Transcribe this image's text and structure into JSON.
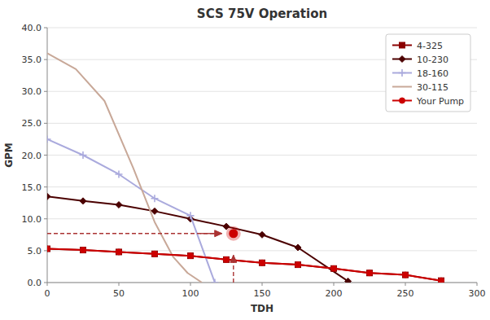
{
  "chart_data": {
    "type": "line",
    "title": "SCS 75V Operation",
    "x_label": "TDH",
    "y_label": "GPM",
    "xlim": [
      0,
      300
    ],
    "ylim": [
      0,
      40
    ],
    "xticks": [
      0,
      50,
      100,
      150,
      200,
      250,
      300
    ],
    "yticks": [
      {
        "value": 0.0,
        "label": "0.0"
      },
      {
        "value": 5.0,
        "label": "5.0"
      },
      {
        "value": 10.0,
        "label": "10.0"
      },
      {
        "value": 15.0,
        "label": "15.0"
      },
      {
        "value": 20.0,
        "label": "20.0"
      },
      {
        "value": 25.0,
        "label": "25.0"
      },
      {
        "value": 30.0,
        "label": "30.0"
      },
      {
        "value": 35.0,
        "label": "35.0"
      },
      {
        "value": 40.0,
        "label": "40.0"
      }
    ],
    "grid": true,
    "legend": "upper right",
    "series": [
      {
        "name": "4-325",
        "color": "#8B0000",
        "marker": "square",
        "x": [
          0,
          25,
          50,
          75,
          100,
          125,
          150,
          175,
          200,
          225,
          250,
          275
        ],
        "values": [
          5.3,
          5.1,
          4.8,
          4.5,
          4.2,
          3.6,
          3.1,
          2.8,
          2.2,
          1.5,
          1.2,
          0.3
        ]
      },
      {
        "name": "10-230",
        "color": "#4B0000",
        "marker": "diamond",
        "x": [
          0,
          25,
          50,
          75,
          100,
          125,
          150,
          175,
          210
        ],
        "values": [
          13.5,
          12.8,
          12.2,
          11.2,
          10.0,
          8.8,
          7.5,
          5.5,
          0.2
        ]
      },
      {
        "name": "18-160",
        "color": "#AAAADD",
        "marker": "plus",
        "x": [
          0,
          25,
          50,
          75,
          100,
          117
        ],
        "values": [
          22.5,
          20.0,
          17.0,
          13.2,
          10.5,
          0.0
        ]
      },
      {
        "name": "30-115",
        "color": "#C8A898",
        "marker": "none",
        "x": [
          0,
          20,
          40,
          60,
          75,
          88,
          98,
          108
        ],
        "values": [
          36.0,
          33.5,
          28.5,
          18.0,
          9.5,
          4.0,
          1.5,
          0.0
        ]
      },
      {
        "name": "Your Pump",
        "color": "#CC0000",
        "marker": "circle",
        "x": [
          0,
          25,
          50,
          75,
          100,
          125,
          150,
          175,
          200,
          225,
          250,
          275
        ],
        "values": [
          5.3,
          5.1,
          4.8,
          4.5,
          4.2,
          3.6,
          3.1,
          2.8,
          2.2,
          1.5,
          1.2,
          0.3
        ]
      }
    ],
    "annotations": [
      {
        "type": "line",
        "line_style": "dashed",
        "color": "#AA3333",
        "x": [
          0,
          118
        ],
        "y": [
          7.7,
          7.7
        ]
      },
      {
        "type": "arrow",
        "line_style": "solid",
        "color": "#AA3333",
        "x": [
          107,
          122
        ],
        "y": [
          7.7,
          7.7
        ]
      },
      {
        "type": "arrow",
        "line_style": "dashed",
        "color": "#AA3333",
        "x": [
          130,
          130
        ],
        "y": [
          0,
          4.3
        ]
      },
      {
        "type": "point",
        "color": "#CC0000",
        "x": [
          130
        ],
        "y": [
          7.7
        ]
      }
    ]
  }
}
